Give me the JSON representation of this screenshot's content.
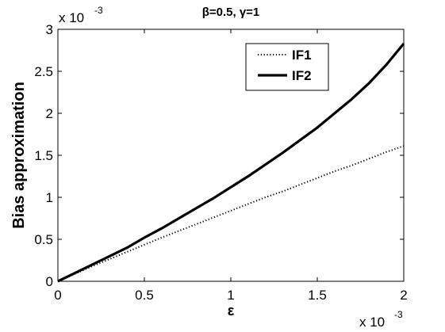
{
  "chart_data": {
    "type": "line",
    "title": "β=0.5, γ=1",
    "xlabel": "ε",
    "ylabel": "Bias approximation",
    "x_multiplier": "x 10",
    "x_exponent": "-3",
    "y_multiplier": "x 10",
    "y_exponent": "-3",
    "xlim": [
      0,
      2
    ],
    "ylim": [
      0,
      3
    ],
    "x_ticks": [
      0,
      0.5,
      1,
      1.5,
      2
    ],
    "x_tick_labels": [
      "0",
      "0.5",
      "1",
      "1.5",
      "2"
    ],
    "y_ticks": [
      0,
      0.5,
      1,
      1.5,
      2,
      2.5,
      3
    ],
    "y_tick_labels": [
      "0",
      "0.5",
      "1",
      "1.5",
      "2",
      "2.5",
      "3"
    ],
    "grid": false,
    "legend_position": "top-right",
    "series": [
      {
        "name": "IF1",
        "style": "dotted",
        "color": "#000000",
        "x": [
          0,
          0.1,
          0.2,
          0.3,
          0.4,
          0.5,
          0.6,
          0.7,
          0.8,
          0.9,
          1.0,
          1.1,
          1.2,
          1.3,
          1.4,
          1.5,
          1.6,
          1.7,
          1.8,
          1.9,
          2.0
        ],
        "y": [
          0,
          0.09,
          0.18,
          0.265,
          0.35,
          0.435,
          0.52,
          0.6,
          0.68,
          0.76,
          0.84,
          0.92,
          1.0,
          1.07,
          1.15,
          1.23,
          1.31,
          1.38,
          1.46,
          1.54,
          1.61
        ]
      },
      {
        "name": "IF2",
        "style": "solid",
        "color": "#000000",
        "x": [
          0,
          0.1,
          0.2,
          0.3,
          0.4,
          0.5,
          0.6,
          0.7,
          0.8,
          0.9,
          1.0,
          1.1,
          1.2,
          1.3,
          1.4,
          1.5,
          1.6,
          1.7,
          1.8,
          1.9,
          2.0
        ],
        "y": [
          0,
          0.1,
          0.2,
          0.3,
          0.4,
          0.52,
          0.63,
          0.75,
          0.87,
          0.99,
          1.12,
          1.25,
          1.39,
          1.53,
          1.68,
          1.83,
          2.0,
          2.17,
          2.36,
          2.58,
          2.83
        ]
      }
    ]
  }
}
